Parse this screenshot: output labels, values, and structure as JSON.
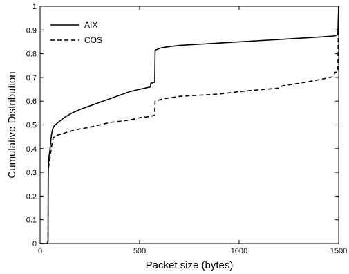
{
  "chart_data": {
    "type": "line",
    "title": "",
    "xlabel": "Packet size (bytes)",
    "ylabel": "Cumulative Distribution",
    "xlim": [
      0,
      1500
    ],
    "ylim": [
      0,
      1
    ],
    "x_ticks": [
      "0",
      "500",
      "1000",
      "1500"
    ],
    "y_ticks": [
      "0",
      "0.1",
      "0.2",
      "0.3",
      "0.4",
      "0.5",
      "0.6",
      "0.7",
      "0.8",
      "0.9",
      "1"
    ],
    "grid": false,
    "legend_position": "top-left",
    "series": [
      {
        "name": "AIX",
        "style": "solid",
        "color": "#000000",
        "points": [
          [
            0,
            0
          ],
          [
            36,
            0
          ],
          [
            40,
            0.01
          ],
          [
            41,
            0.3
          ],
          [
            44,
            0.36
          ],
          [
            50,
            0.4
          ],
          [
            56,
            0.45
          ],
          [
            62,
            0.48
          ],
          [
            70,
            0.495
          ],
          [
            90,
            0.51
          ],
          [
            120,
            0.53
          ],
          [
            160,
            0.55
          ],
          [
            200,
            0.565
          ],
          [
            250,
            0.58
          ],
          [
            300,
            0.595
          ],
          [
            350,
            0.61
          ],
          [
            400,
            0.625
          ],
          [
            450,
            0.64
          ],
          [
            500,
            0.65
          ],
          [
            555,
            0.66
          ],
          [
            556,
            0.675
          ],
          [
            576,
            0.68
          ],
          [
            578,
            0.815
          ],
          [
            610,
            0.825
          ],
          [
            650,
            0.83
          ],
          [
            700,
            0.835
          ],
          [
            800,
            0.84
          ],
          [
            900,
            0.845
          ],
          [
            1000,
            0.85
          ],
          [
            1100,
            0.855
          ],
          [
            1200,
            0.86
          ],
          [
            1300,
            0.865
          ],
          [
            1400,
            0.87
          ],
          [
            1480,
            0.875
          ],
          [
            1496,
            0.88
          ],
          [
            1498,
            0.95
          ],
          [
            1500,
            1.0
          ]
        ]
      },
      {
        "name": "COS",
        "style": "dashed",
        "color": "#000000",
        "points": [
          [
            0,
            0
          ],
          [
            36,
            0
          ],
          [
            40,
            0.01
          ],
          [
            41,
            0.3
          ],
          [
            44,
            0.33
          ],
          [
            50,
            0.36
          ],
          [
            56,
            0.4
          ],
          [
            60,
            0.42
          ],
          [
            66,
            0.445
          ],
          [
            80,
            0.455
          ],
          [
            120,
            0.465
          ],
          [
            160,
            0.475
          ],
          [
            200,
            0.483
          ],
          [
            250,
            0.49
          ],
          [
            300,
            0.5
          ],
          [
            350,
            0.51
          ],
          [
            400,
            0.515
          ],
          [
            450,
            0.52
          ],
          [
            500,
            0.53
          ],
          [
            550,
            0.535
          ],
          [
            575,
            0.54
          ],
          [
            578,
            0.6
          ],
          [
            620,
            0.61
          ],
          [
            700,
            0.62
          ],
          [
            800,
            0.625
          ],
          [
            900,
            0.63
          ],
          [
            1000,
            0.64
          ],
          [
            1060,
            0.645
          ],
          [
            1200,
            0.655
          ],
          [
            1220,
            0.665
          ],
          [
            1300,
            0.675
          ],
          [
            1400,
            0.69
          ],
          [
            1460,
            0.7
          ],
          [
            1475,
            0.705
          ],
          [
            1480,
            0.72
          ],
          [
            1496,
            0.725
          ],
          [
            1498,
            0.87
          ],
          [
            1500,
            1.0
          ]
        ]
      }
    ]
  }
}
